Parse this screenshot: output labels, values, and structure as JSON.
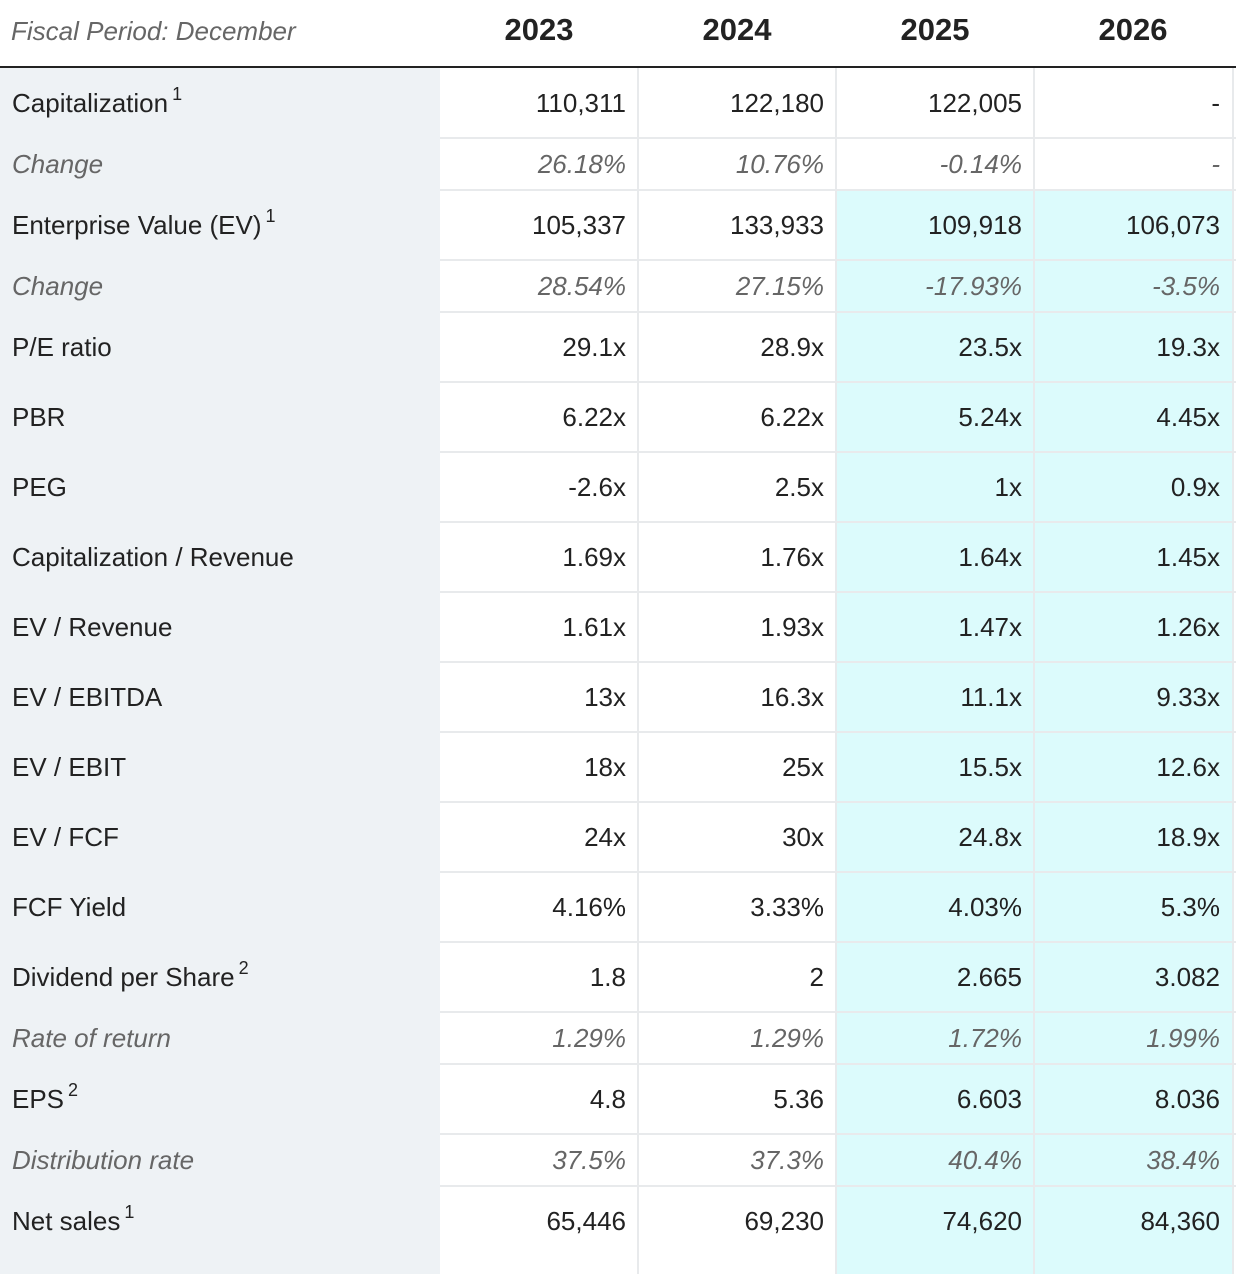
{
  "header": {
    "fiscal_label": "Fiscal Period: December",
    "years": [
      "2023",
      "2024",
      "2025",
      "2026"
    ]
  },
  "colors": {
    "label_bg": "#eef2f5",
    "estimate_bg": "#dcfbfc",
    "grid": "#e8eaec"
  },
  "rows": [
    {
      "label": "Capitalization",
      "sup": "1",
      "values": [
        "110,311",
        "122,180",
        "122,005",
        "-"
      ],
      "sub": false
    },
    {
      "label": "Change",
      "sup": "",
      "values": [
        "26.18%",
        "10.76%",
        "-0.14%",
        "-"
      ],
      "sub": true
    },
    {
      "label": "Enterprise Value (EV)",
      "sup": "1",
      "values": [
        "105,337",
        "133,933",
        "109,918",
        "106,073"
      ],
      "sub": false
    },
    {
      "label": "Change",
      "sup": "",
      "values": [
        "28.54%",
        "27.15%",
        "-17.93%",
        "-3.5%"
      ],
      "sub": true
    },
    {
      "label": "P/E ratio",
      "sup": "",
      "values": [
        "29.1x",
        "28.9x",
        "23.5x",
        "19.3x"
      ],
      "sub": false
    },
    {
      "label": "PBR",
      "sup": "",
      "values": [
        "6.22x",
        "6.22x",
        "5.24x",
        "4.45x"
      ],
      "sub": false
    },
    {
      "label": "PEG",
      "sup": "",
      "values": [
        "-2.6x",
        "2.5x",
        "1x",
        "0.9x"
      ],
      "sub": false
    },
    {
      "label": "Capitalization / Revenue",
      "sup": "",
      "values": [
        "1.69x",
        "1.76x",
        "1.64x",
        "1.45x"
      ],
      "sub": false
    },
    {
      "label": "EV / Revenue",
      "sup": "",
      "values": [
        "1.61x",
        "1.93x",
        "1.47x",
        "1.26x"
      ],
      "sub": false
    },
    {
      "label": "EV / EBITDA",
      "sup": "",
      "values": [
        "13x",
        "16.3x",
        "11.1x",
        "9.33x"
      ],
      "sub": false
    },
    {
      "label": "EV / EBIT",
      "sup": "",
      "values": [
        "18x",
        "25x",
        "15.5x",
        "12.6x"
      ],
      "sub": false
    },
    {
      "label": "EV / FCF",
      "sup": "",
      "values": [
        "24x",
        "30x",
        "24.8x",
        "18.9x"
      ],
      "sub": false
    },
    {
      "label": "FCF Yield",
      "sup": "",
      "values": [
        "4.16%",
        "3.33%",
        "4.03%",
        "5.3%"
      ],
      "sub": false
    },
    {
      "label": "Dividend per Share",
      "sup": "2",
      "values": [
        "1.8",
        "2",
        "2.665",
        "3.082"
      ],
      "sub": false
    },
    {
      "label": "Rate of return",
      "sup": "",
      "values": [
        "1.29%",
        "1.29%",
        "1.72%",
        "1.99%"
      ],
      "sub": true
    },
    {
      "label": "EPS",
      "sup": "2",
      "values": [
        "4.8",
        "5.36",
        "6.603",
        "8.036"
      ],
      "sub": false
    },
    {
      "label": "Distribution rate",
      "sup": "",
      "values": [
        "37.5%",
        "37.3%",
        "40.4%",
        "38.4%"
      ],
      "sub": true
    },
    {
      "label": "Net sales",
      "sup": "1",
      "values": [
        "65,446",
        "69,230",
        "74,620",
        "84,360"
      ],
      "sub": false
    }
  ]
}
